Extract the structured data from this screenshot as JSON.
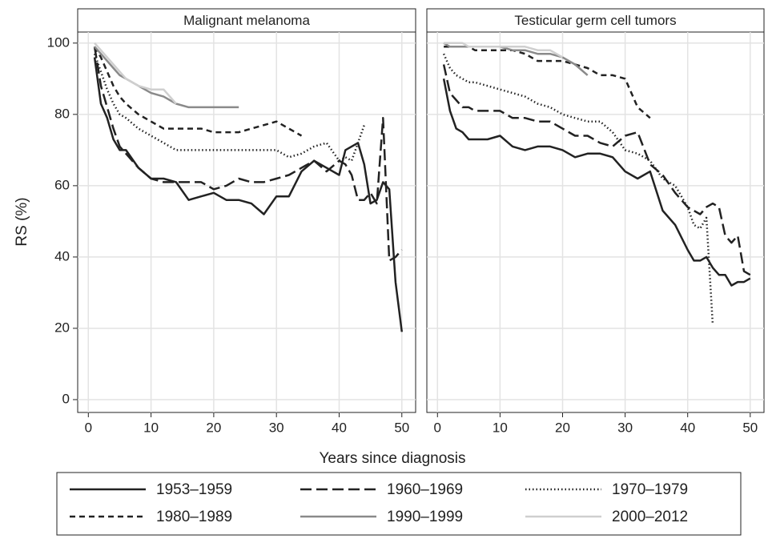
{
  "chart_data": [
    {
      "type": "line",
      "title": "Malignant melanoma",
      "xlabel": "Years since diagnosis",
      "ylabel": "RS (%)",
      "x": [
        1,
        2,
        3,
        4,
        5,
        6,
        8,
        10,
        12,
        14,
        16,
        18,
        20,
        22,
        24,
        26,
        28,
        30,
        32,
        34,
        36,
        38,
        40,
        41,
        42,
        43,
        44,
        45,
        46,
        47,
        48,
        49,
        50
      ],
      "xlim": [
        -1.7,
        52.2
      ],
      "ylim": [
        -3.6,
        103.1
      ],
      "xticks": [
        0,
        10,
        20,
        30,
        40,
        50
      ],
      "yticks": [
        0,
        20,
        40,
        60,
        80,
        100
      ],
      "grid": true,
      "series": [
        {
          "name": "1953–1959",
          "color": "#222222",
          "dash": "solid",
          "values": [
            96,
            83,
            79,
            73,
            70,
            70,
            65,
            62,
            62,
            61,
            56,
            57,
            58,
            56,
            56,
            55,
            52,
            57,
            57,
            64,
            67,
            65,
            63,
            70,
            71,
            72,
            66,
            55,
            56,
            61,
            59,
            33,
            19
          ]
        },
        {
          "name": "1960–1969",
          "color": "#222222",
          "dash": "long",
          "values": [
            99,
            88,
            82,
            76,
            71,
            69,
            65,
            62,
            61,
            61,
            61,
            61,
            59,
            60,
            62,
            61,
            61,
            62,
            63,
            65,
            67,
            64,
            67,
            66,
            63,
            56,
            56,
            58,
            55,
            79,
            39,
            40,
            42
          ]
        },
        {
          "name": "1970–1979",
          "color": "#222222",
          "dash": "dot",
          "values": [
            97,
            92,
            87,
            83,
            80,
            79,
            76,
            74,
            72,
            70,
            70,
            70,
            70,
            70,
            70,
            70,
            70,
            70,
            68,
            69,
            71,
            72,
            67,
            68,
            67,
            72,
            77,
            null,
            null,
            null,
            null,
            null,
            null
          ]
        },
        {
          "name": "1980–1989",
          "color": "#222222",
          "dash": "short",
          "values": [
            99,
            96,
            92,
            88,
            85,
            83,
            80,
            78,
            76,
            76,
            76,
            76,
            75,
            75,
            75,
            76,
            77,
            78,
            76,
            74,
            null,
            null,
            null,
            null,
            null,
            null,
            null,
            null,
            null,
            null,
            null,
            null,
            null
          ]
        },
        {
          "name": "1990–1999",
          "color": "#8a8a8a",
          "dash": "solid",
          "values": [
            99,
            97,
            95,
            93,
            91,
            90,
            88,
            86,
            85,
            83,
            82,
            82,
            82,
            82,
            82,
            null,
            null,
            null,
            null,
            null,
            null,
            null,
            null,
            null,
            null,
            null,
            null,
            null,
            null,
            null,
            null,
            null,
            null
          ]
        },
        {
          "name": "2000–2012",
          "color": "#cfcfcf",
          "dash": "solid",
          "values": [
            100,
            98,
            96,
            94,
            92,
            90,
            88,
            87,
            87,
            83,
            null,
            null,
            null,
            null,
            null,
            null,
            null,
            null,
            null,
            null,
            null,
            null,
            null,
            null,
            null,
            null,
            null,
            null,
            null,
            null,
            null,
            null,
            null
          ]
        }
      ]
    },
    {
      "type": "line",
      "title": "Testicular germ cell tumors",
      "x": [
        1,
        2,
        3,
        4,
        5,
        6,
        8,
        10,
        12,
        14,
        16,
        18,
        20,
        22,
        24,
        26,
        28,
        30,
        32,
        34,
        36,
        38,
        40,
        41,
        42,
        43,
        44,
        45,
        46,
        47,
        48,
        49,
        50
      ],
      "xlim": [
        -1.7,
        52.2
      ],
      "ylim": [
        -3.6,
        103.1
      ],
      "xticks": [
        0,
        10,
        20,
        30,
        40,
        50
      ],
      "yticks": [
        0,
        20,
        40,
        60,
        80,
        100
      ],
      "grid": true,
      "series": [
        {
          "name": "1953–1959",
          "color": "#222222",
          "dash": "solid",
          "values": [
            90,
            81,
            76,
            75,
            73,
            73,
            73,
            74,
            71,
            70,
            71,
            71,
            70,
            68,
            69,
            69,
            68,
            64,
            62,
            64,
            53,
            49,
            42,
            39,
            39,
            40,
            37,
            35,
            35,
            32,
            33,
            33,
            34
          ]
        },
        {
          "name": "1960–1969",
          "color": "#222222",
          "dash": "long",
          "values": [
            94,
            86,
            84,
            82,
            82,
            81,
            81,
            81,
            79,
            79,
            78,
            78,
            76,
            74,
            74,
            72,
            71,
            74,
            75,
            66,
            63,
            58,
            54,
            53,
            52,
            54,
            55,
            54,
            46,
            44,
            46,
            36,
            35
          ]
        },
        {
          "name": "1970–1979",
          "color": "#222222",
          "dash": "dot",
          "values": [
            97,
            93,
            91,
            90,
            89,
            89,
            88,
            87,
            86,
            85,
            83,
            82,
            80,
            79,
            78,
            78,
            75,
            70,
            69,
            67,
            62,
            60,
            54,
            49,
            48,
            51,
            21,
            null,
            null,
            null,
            null,
            null,
            null
          ]
        },
        {
          "name": "1980–1989",
          "color": "#222222",
          "dash": "short",
          "values": [
            99,
            99,
            99,
            99,
            99,
            98,
            98,
            98,
            98,
            97,
            95,
            95,
            95,
            94,
            93,
            91,
            91,
            90,
            82,
            79,
            null,
            null,
            null,
            null,
            null,
            null,
            null,
            null,
            null,
            null,
            null,
            null,
            null
          ]
        },
        {
          "name": "1990–1999",
          "color": "#8a8a8a",
          "dash": "solid",
          "values": [
            100,
            99,
            99,
            99,
            99,
            99,
            99,
            99,
            98,
            98,
            97,
            97,
            96,
            94,
            91,
            null,
            null,
            null,
            null,
            null,
            null,
            null,
            null,
            null,
            null,
            null,
            null,
            null,
            null,
            null,
            null,
            null,
            null
          ]
        },
        {
          "name": "2000–2012",
          "color": "#cfcfcf",
          "dash": "solid",
          "values": [
            100,
            100,
            100,
            100,
            99,
            99,
            99,
            99,
            99,
            99,
            98,
            98,
            96,
            null,
            null,
            null,
            null,
            null,
            null,
            null,
            null,
            null,
            null,
            null,
            null,
            null,
            null,
            null,
            null,
            null,
            null,
            null,
            null
          ]
        }
      ]
    }
  ]
}
